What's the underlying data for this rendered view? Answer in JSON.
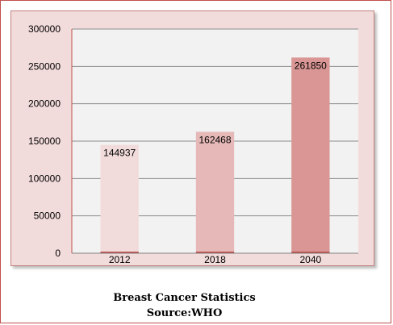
{
  "chart_data": {
    "type": "bar",
    "categories": [
      "2012",
      "2018",
      "2040"
    ],
    "values": [
      144937,
      162468,
      261850
    ],
    "title": "Breast Cancer Statistics",
    "subtitle": "Source:WHO",
    "xlabel": "",
    "ylabel": "",
    "ylim": [
      0,
      300000
    ],
    "yticks": [
      "0",
      "50000",
      "100000",
      "150000",
      "200000",
      "250000",
      "300000"
    ],
    "grid": true,
    "legend": "none",
    "bar_colors": [
      "#f2dcdb",
      "#e6b9b8",
      "#d99694"
    ],
    "plot_background": "#f2f2f2",
    "chart_background": "#f2dcdb"
  },
  "caption": {
    "line1": "Breast Cancer Statistics",
    "line2": "Source:WHO"
  }
}
